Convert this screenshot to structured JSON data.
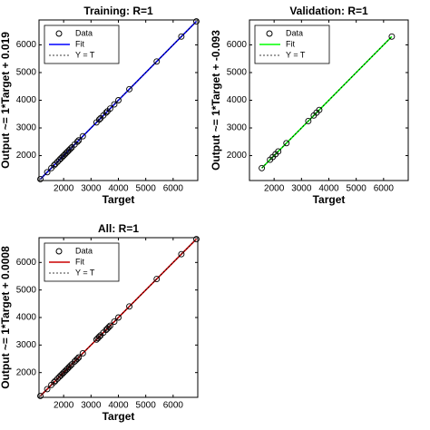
{
  "chart_data": [
    {
      "type": "scatter",
      "title": "Training: R=1",
      "x_label": "Target",
      "y_label": "Output ~= 1*Target + 0.019",
      "x": [
        1150,
        1400,
        1550,
        1650,
        1700,
        1780,
        1850,
        1900,
        1950,
        2000,
        2050,
        2100,
        2150,
        2200,
        2250,
        2300,
        2400,
        2500,
        2550,
        2700,
        3200,
        3300,
        3350,
        3450,
        3550,
        3600,
        3700,
        3850,
        4000,
        4400,
        5400,
        6300,
        6850
      ],
      "series": [
        {
          "name": "Data",
          "color": "#000000",
          "marker": "circle",
          "values": [
            1150,
            1400,
            1550,
            1650,
            1700,
            1780,
            1850,
            1900,
            1950,
            2000,
            2050,
            2100,
            2150,
            2200,
            2250,
            2300,
            2400,
            2500,
            2550,
            2700,
            3200,
            3300,
            3350,
            3450,
            3550,
            3600,
            3700,
            3850,
            4000,
            4400,
            5400,
            6300,
            6850
          ]
        },
        {
          "name": "Fit",
          "color": "#0000ff",
          "marker": "line",
          "values": [
            1150,
            1400,
            1550,
            1650,
            1700,
            1780,
            1850,
            1900,
            1950,
            2000,
            2050,
            2100,
            2150,
            2200,
            2250,
            2300,
            2400,
            2500,
            2550,
            2700,
            3200,
            3300,
            3350,
            3450,
            3550,
            3600,
            3700,
            3850,
            4000,
            4400,
            5400,
            6300,
            6850
          ]
        },
        {
          "name": "Y = T",
          "color": "#000000",
          "marker": "dotted",
          "values": [
            1150,
            1400,
            1550,
            1650,
            1700,
            1780,
            1850,
            1900,
            1950,
            2000,
            2050,
            2100,
            2150,
            2200,
            2250,
            2300,
            2400,
            2500,
            2550,
            2700,
            3200,
            3300,
            3350,
            3450,
            3550,
            3600,
            3700,
            3850,
            4000,
            4400,
            5400,
            6300,
            6850
          ]
        }
      ],
      "xlim": [
        1100,
        6900
      ],
      "ylim": [
        1100,
        6900
      ],
      "xticks": [
        2000,
        3000,
        4000,
        5000,
        6000
      ],
      "yticks": [
        2000,
        3000,
        4000,
        5000,
        6000
      ],
      "legend": "upper-left"
    },
    {
      "type": "scatter",
      "title": "Validation: R=1",
      "x_label": "Target",
      "y_label": "Output ~= 1*Target + -0.093",
      "x": [
        1550,
        1850,
        1950,
        2050,
        2150,
        2450,
        3250,
        3450,
        3550,
        3650,
        6300
      ],
      "series": [
        {
          "name": "Data",
          "color": "#000000",
          "marker": "circle",
          "values": [
            1550,
            1850,
            1950,
            2050,
            2150,
            2450,
            3250,
            3450,
            3550,
            3650,
            6300
          ]
        },
        {
          "name": "Fit",
          "color": "#00ff00",
          "marker": "line",
          "values": [
            1550,
            1850,
            1950,
            2050,
            2150,
            2450,
            3250,
            3450,
            3550,
            3650,
            6300
          ]
        },
        {
          "name": "Y = T",
          "color": "#000000",
          "marker": "dotted",
          "values": [
            1550,
            1850,
            1950,
            2050,
            2150,
            2450,
            3250,
            3450,
            3550,
            3650,
            6300
          ]
        }
      ],
      "xlim": [
        1100,
        6900
      ],
      "ylim": [
        1100,
        6900
      ],
      "xticks": [
        2000,
        3000,
        4000,
        5000,
        6000
      ],
      "yticks": [
        2000,
        3000,
        4000,
        5000,
        6000
      ],
      "legend": "upper-left"
    },
    {
      "type": "scatter",
      "title": "All: R=1",
      "x_label": "Target",
      "y_label": "Output ~= 1*Target + 0.0008",
      "x": [
        1150,
        1400,
        1550,
        1650,
        1700,
        1780,
        1850,
        1900,
        1950,
        2000,
        2050,
        2100,
        2150,
        2200,
        2250,
        2300,
        2400,
        2450,
        2500,
        2550,
        2700,
        3200,
        3250,
        3300,
        3350,
        3450,
        3550,
        3600,
        3650,
        3700,
        3850,
        4000,
        4400,
        5400,
        6300,
        6850
      ],
      "series": [
        {
          "name": "Data",
          "color": "#000000",
          "marker": "circle",
          "values": [
            1150,
            1400,
            1550,
            1650,
            1700,
            1780,
            1850,
            1900,
            1950,
            2000,
            2050,
            2100,
            2150,
            2200,
            2250,
            2300,
            2400,
            2450,
            2500,
            2550,
            2700,
            3200,
            3250,
            3300,
            3350,
            3450,
            3550,
            3600,
            3650,
            3700,
            3850,
            4000,
            4400,
            5400,
            6300,
            6850
          ]
        },
        {
          "name": "Fit",
          "color": "#cc0000",
          "marker": "line",
          "values": [
            1150,
            1400,
            1550,
            1650,
            1700,
            1780,
            1850,
            1900,
            1950,
            2000,
            2050,
            2100,
            2150,
            2200,
            2250,
            2300,
            2400,
            2450,
            2500,
            2550,
            2700,
            3200,
            3250,
            3300,
            3350,
            3450,
            3550,
            3600,
            3650,
            3700,
            3850,
            4000,
            4400,
            5400,
            6300,
            6850
          ]
        },
        {
          "name": "Y = T",
          "color": "#000000",
          "marker": "dotted",
          "values": [
            1150,
            1400,
            1550,
            1650,
            1700,
            1780,
            1850,
            1900,
            1950,
            2000,
            2050,
            2100,
            2150,
            2200,
            2250,
            2300,
            2400,
            2450,
            2500,
            2550,
            2700,
            3200,
            3250,
            3300,
            3350,
            3450,
            3550,
            3600,
            3650,
            3700,
            3850,
            4000,
            4400,
            5400,
            6300,
            6850
          ]
        }
      ],
      "xlim": [
        1100,
        6900
      ],
      "ylim": [
        1100,
        6900
      ],
      "xticks": [
        2000,
        3000,
        4000,
        5000,
        6000
      ],
      "yticks": [
        2000,
        3000,
        4000,
        5000,
        6000
      ],
      "legend": "upper-left"
    }
  ]
}
